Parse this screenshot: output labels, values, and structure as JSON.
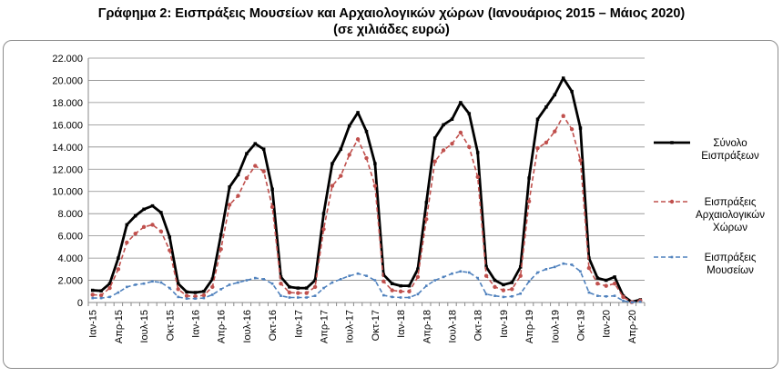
{
  "title": {
    "line1": "Γράφημα 2: Εισπράξεις Μουσείων και Αρχαιολογικών χώρων (Ιανουάριος 2015 – Μάιος 2020)",
    "line2": "(σε χιλιάδες ευρώ)"
  },
  "chart_data": {
    "type": "line",
    "title": "Γράφημα 2: Εισπράξεις Μουσείων και Αρχαιολογικών χώρων (Ιανουάριος 2015 – Μάιος 2020) (σε χιλιάδες ευρώ)",
    "xlabel": "",
    "ylabel": "",
    "ylim": [
      0,
      22000
    ],
    "yticks": [
      "0",
      "2.000",
      "4.000",
      "6.000",
      "8.000",
      "10.000",
      "12.000",
      "14.000",
      "16.000",
      "18.000",
      "20.000",
      "22.000"
    ],
    "x_tick_labels": [
      "Ιαν-15",
      "Απρ-15",
      "Ιουλ-15",
      "Οκτ-15",
      "Ιαν-16",
      "Απρ-16",
      "Ιουλ-16",
      "Οκτ-16",
      "Ιαν-17",
      "Απρ-17",
      "Ιουλ-17",
      "Οκτ-17",
      "Ιαν-18",
      "Απρ-18",
      "Ιουλ-18",
      "Οκτ-18",
      "Ιαν-19",
      "Απρ-19",
      "Ιουλ-19",
      "Οκτ-19",
      "Ιαν-20",
      "Απρ-20"
    ],
    "x_start": "2015-01",
    "x_end": "2020-05",
    "grid": "horizontal",
    "legend_position": "right",
    "series": [
      {
        "name": "Σύνολο Εισπράξεων",
        "color": "#000000",
        "style": "solid",
        "values": [
          1100,
          1050,
          1700,
          4000,
          7000,
          7800,
          8400,
          8700,
          8100,
          5900,
          1700,
          950,
          900,
          1000,
          2100,
          6100,
          10400,
          11500,
          13400,
          14300,
          13800,
          10200,
          2300,
          1400,
          1300,
          1300,
          2000,
          8000,
          12500,
          13800,
          15900,
          17100,
          15400,
          12500,
          2500,
          1700,
          1500,
          1500,
          3000,
          9000,
          14800,
          16000,
          16500,
          18000,
          17000,
          13500,
          3200,
          2000,
          1600,
          1800,
          3200,
          11200,
          16500,
          17600,
          18700,
          20200,
          19000,
          15700,
          4000,
          2200,
          2000,
          2300,
          600,
          50,
          250
        ]
      },
      {
        "name": "Εισπράξεις Αρχαιολογικών Χώρων",
        "color": "#c0504d",
        "style": "dashed",
        "values": [
          700,
          650,
          1300,
          3000,
          5400,
          6200,
          6800,
          7000,
          6400,
          4700,
          1200,
          600,
          550,
          650,
          1400,
          4800,
          8800,
          9600,
          11200,
          12300,
          11800,
          8600,
          1700,
          900,
          850,
          850,
          1400,
          6600,
          10500,
          11400,
          13300,
          14700,
          13000,
          10500,
          1900,
          1100,
          1000,
          1000,
          2300,
          7500,
          12700,
          13700,
          14300,
          15300,
          14000,
          11300,
          2400,
          1400,
          1100,
          1200,
          2400,
          9100,
          13900,
          14400,
          15400,
          16800,
          15600,
          12800,
          3100,
          1700,
          1500,
          1700,
          500,
          40,
          180
        ]
      },
      {
        "name": "Εισπράξεις Μουσείων",
        "color": "#4f81bd",
        "style": "dashed",
        "values": [
          400,
          400,
          500,
          900,
          1400,
          1600,
          1700,
          1900,
          1800,
          1300,
          500,
          350,
          350,
          400,
          700,
          1200,
          1600,
          1800,
          2000,
          2200,
          2100,
          1700,
          600,
          450,
          450,
          450,
          600,
          1300,
          1800,
          2100,
          2400,
          2600,
          2400,
          2000,
          650,
          500,
          450,
          450,
          750,
          1500,
          2000,
          2300,
          2600,
          2800,
          2700,
          2200,
          750,
          600,
          500,
          550,
          800,
          1900,
          2700,
          3000,
          3200,
          3500,
          3400,
          2800,
          900,
          600,
          550,
          600,
          150,
          20,
          70
        ]
      }
    ]
  }
}
